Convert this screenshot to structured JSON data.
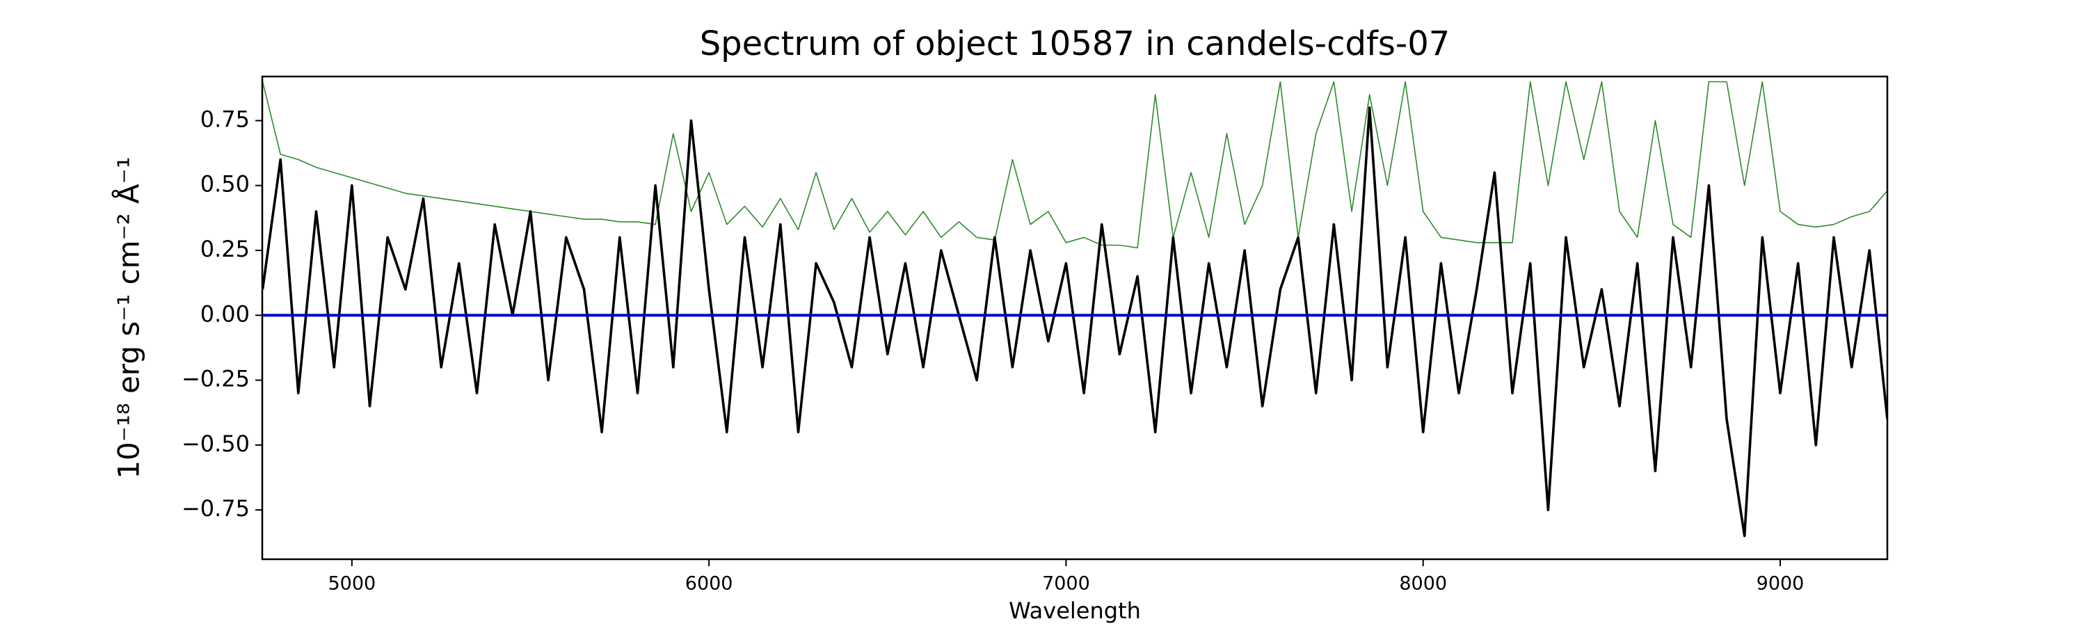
{
  "chart_data": {
    "type": "line",
    "title": "Spectrum of object 10587 in candels-cdfs-07",
    "xlabel": "Wavelength",
    "ylabel": "10⁻¹⁸ erg s⁻¹ cm⁻² Å⁻¹",
    "xlim": [
      4749,
      9300
    ],
    "ylim": [
      -0.94,
      0.92
    ],
    "xticks": [
      5000,
      6000,
      7000,
      8000,
      9000
    ],
    "yticks": [
      {
        "value": 0.75,
        "label": "0.75"
      },
      {
        "value": 0.5,
        "label": "0.50"
      },
      {
        "value": 0.25,
        "label": "0.25"
      },
      {
        "value": 0,
        "label": "0.00"
      },
      {
        "value": -0.25,
        "label": "−0.25"
      },
      {
        "value": -0.5,
        "label": "−0.50"
      },
      {
        "value": -0.75,
        "label": "−0.75"
      }
    ],
    "grid": false,
    "series": [
      {
        "color": "#2e8b2e",
        "width": 1.6,
        "x": [
          4750,
          4800,
          4850,
          4900,
          4950,
          5000,
          5050,
          5100,
          5150,
          5200,
          5250,
          5300,
          5350,
          5400,
          5450,
          5500,
          5550,
          5600,
          5650,
          5700,
          5750,
          5800,
          5850,
          5900,
          5950,
          6000,
          6050,
          6100,
          6150,
          6200,
          6250,
          6300,
          6350,
          6400,
          6450,
          6500,
          6550,
          6600,
          6650,
          6700,
          6750,
          6800,
          6850,
          6900,
          6950,
          7000,
          7050,
          7100,
          7150,
          7200,
          7250,
          7300,
          7350,
          7400,
          7450,
          7500,
          7550,
          7600,
          7650,
          7700,
          7750,
          7800,
          7850,
          7900,
          7950,
          8000,
          8050,
          8100,
          8150,
          8200,
          8250,
          8300,
          8350,
          8400,
          8450,
          8500,
          8550,
          8600,
          8650,
          8700,
          8750,
          8800,
          8850,
          8900,
          8950,
          9000,
          9050,
          9100,
          9150,
          9200,
          9250,
          9300
        ],
        "values": [
          0.9,
          0.62,
          0.6,
          0.57,
          0.55,
          0.53,
          0.51,
          0.49,
          0.47,
          0.46,
          0.45,
          0.44,
          0.43,
          0.42,
          0.41,
          0.4,
          0.39,
          0.38,
          0.37,
          0.37,
          0.36,
          0.36,
          0.35,
          0.7,
          0.4,
          0.55,
          0.35,
          0.42,
          0.34,
          0.45,
          0.33,
          0.55,
          0.33,
          0.45,
          0.32,
          0.4,
          0.31,
          0.4,
          0.3,
          0.36,
          0.3,
          0.29,
          0.6,
          0.35,
          0.4,
          0.28,
          0.3,
          0.27,
          0.27,
          0.26,
          0.85,
          0.3,
          0.55,
          0.3,
          0.7,
          0.35,
          0.5,
          0.9,
          0.3,
          0.7,
          0.9,
          0.4,
          0.85,
          0.5,
          0.9,
          0.4,
          0.3,
          0.29,
          0.28,
          0.28,
          0.28,
          0.9,
          0.5,
          0.9,
          0.6,
          0.9,
          0.4,
          0.3,
          0.75,
          0.35,
          0.3,
          0.9,
          0.9,
          0.5,
          0.9,
          0.4,
          0.35,
          0.34,
          0.35,
          0.38,
          0.4,
          0.48
        ]
      },
      {
        "color": "#000000",
        "width": 3.6,
        "x": [
          4750,
          4800,
          4850,
          4900,
          4950,
          5000,
          5050,
          5100,
          5150,
          5200,
          5250,
          5300,
          5350,
          5400,
          5450,
          5500,
          5550,
          5600,
          5650,
          5700,
          5750,
          5800,
          5850,
          5900,
          5950,
          6000,
          6050,
          6100,
          6150,
          6200,
          6250,
          6300,
          6350,
          6400,
          6450,
          6500,
          6550,
          6600,
          6650,
          6700,
          6750,
          6800,
          6850,
          6900,
          6950,
          7000,
          7050,
          7100,
          7150,
          7200,
          7250,
          7300,
          7350,
          7400,
          7450,
          7500,
          7550,
          7600,
          7650,
          7700,
          7750,
          7800,
          7850,
          7900,
          7950,
          8000,
          8050,
          8100,
          8150,
          8200,
          8250,
          8300,
          8350,
          8400,
          8450,
          8500,
          8550,
          8600,
          8650,
          8700,
          8750,
          8800,
          8850,
          8900,
          8950,
          9000,
          9050,
          9100,
          9150,
          9200,
          9250,
          9300
        ],
        "values": [
          0.1,
          0.6,
          -0.3,
          0.4,
          -0.2,
          0.5,
          -0.35,
          0.3,
          0.1,
          0.45,
          -0.2,
          0.2,
          -0.3,
          0.35,
          0.0,
          0.4,
          -0.25,
          0.3,
          0.1,
          -0.45,
          0.3,
          -0.3,
          0.5,
          -0.2,
          0.75,
          0.1,
          -0.45,
          0.3,
          -0.2,
          0.35,
          -0.45,
          0.2,
          0.05,
          -0.2,
          0.3,
          -0.15,
          0.2,
          -0.2,
          0.25,
          0.0,
          -0.25,
          0.3,
          -0.2,
          0.25,
          -0.1,
          0.2,
          -0.3,
          0.35,
          -0.15,
          0.15,
          -0.45,
          0.3,
          -0.3,
          0.2,
          -0.2,
          0.25,
          -0.35,
          0.1,
          0.3,
          -0.3,
          0.35,
          -0.25,
          0.8,
          -0.2,
          0.3,
          -0.45,
          0.2,
          -0.3,
          0.1,
          0.55,
          -0.3,
          0.2,
          -0.75,
          0.3,
          -0.2,
          0.1,
          -0.35,
          0.2,
          -0.6,
          0.3,
          -0.2,
          0.5,
          -0.4,
          -0.85,
          0.3,
          -0.3,
          0.2,
          -0.5,
          0.3,
          -0.2,
          0.25,
          -0.4
        ]
      },
      {
        "color": "#0000cc",
        "width": 4,
        "x": [
          4749,
          9300
        ],
        "values": [
          0,
          0
        ]
      }
    ]
  }
}
